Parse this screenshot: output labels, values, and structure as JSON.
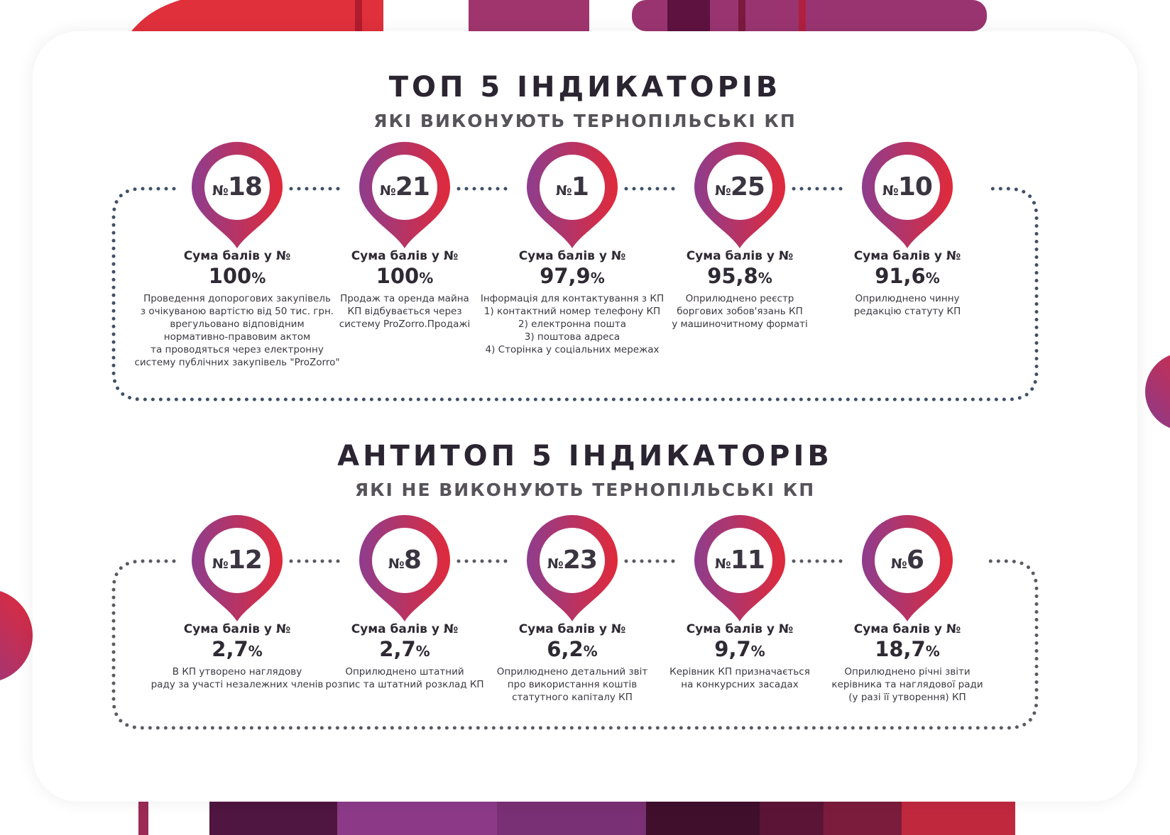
{
  "colors": {
    "pin_start": "#8e3d8e",
    "pin_end": "#e02a3a",
    "dots_top": "#3f5168",
    "dots_bottom": "#5a5a62",
    "title": "#2b2431",
    "text": "#3c3940"
  },
  "top": {
    "title": "ТОП 5 ІНДИКАТОРІВ",
    "subtitle": "ЯКІ ВИКОНУЮТЬ ТЕРНОПІЛЬСЬКІ КП",
    "items": [
      {
        "prefix": "№",
        "number": "18",
        "label": "Сума балів у №",
        "value": "100",
        "unit": "%",
        "desc": [
          "Проведення допорогових закупівель",
          "з очікуваною вартістю від 50 тис. грн.",
          "врегульовано відповідним",
          "нормативно-правовим актом",
          "та проводяться через електронну",
          "систему публічних закупівель \"ProZorro\""
        ]
      },
      {
        "prefix": "№",
        "number": "21",
        "label": "Сума балів у №",
        "value": "100",
        "unit": "%",
        "desc": [
          "Продаж та оренда майна",
          "КП відбувається через",
          "систему ProZorro.Продажі"
        ]
      },
      {
        "prefix": "№",
        "number": "1",
        "label": "Сума балів у №",
        "value": "97,9",
        "unit": "%",
        "desc": [
          "Інформація для контактування з КП",
          "1) контактний номер телефону КП",
          "2) електронна пошта",
          "3) поштова адреса",
          "4) Сторінка у соціальних мережах"
        ]
      },
      {
        "prefix": "№",
        "number": "25",
        "label": "Сума балів у №",
        "value": "95,8",
        "unit": "%",
        "desc": [
          "Оприлюднено реєстр",
          "боргових зобов'язань КП",
          "у машиночитному форматі"
        ]
      },
      {
        "prefix": "№",
        "number": "10",
        "label": "Сума балів у №",
        "value": "91,6",
        "unit": "%",
        "desc": [
          "Оприлюднено чинну",
          "редакцію статуту КП"
        ]
      }
    ]
  },
  "bottom": {
    "title": "АНТИТОП 5 ІНДИКАТОРІВ",
    "subtitle": "ЯКІ НЕ ВИКОНУЮТЬ ТЕРНОПІЛЬСЬКІ КП",
    "items": [
      {
        "prefix": "№",
        "number": "12",
        "label": "Сума балів у №",
        "value": "2,7",
        "unit": "%",
        "desc": [
          "В КП утворено наглядову",
          "раду за участі незалежних членів"
        ]
      },
      {
        "prefix": "№",
        "number": "8",
        "label": "Сума балів у №",
        "value": "2,7",
        "unit": "%",
        "desc": [
          "Оприлюднено штатний",
          "розпис та штатний розклад КП"
        ]
      },
      {
        "prefix": "№",
        "number": "23",
        "label": "Сума балів у №",
        "value": "6,2",
        "unit": "%",
        "desc": [
          "Оприлюднено детальний звіт",
          "про використання коштів",
          "статутного капіталу КП"
        ]
      },
      {
        "prefix": "№",
        "number": "11",
        "label": "Сума балів у №",
        "value": "9,7",
        "unit": "%",
        "desc": [
          "Керівник КП призначається",
          "на конкурсних засадах"
        ]
      },
      {
        "prefix": "№",
        "number": "6",
        "label": "Сума балів у №",
        "value": "18,7",
        "unit": "%",
        "desc": [
          "Оприлюднено річні звіти",
          "керівника та наглядової ради",
          "(у разі її утворення) КП"
        ]
      }
    ]
  }
}
